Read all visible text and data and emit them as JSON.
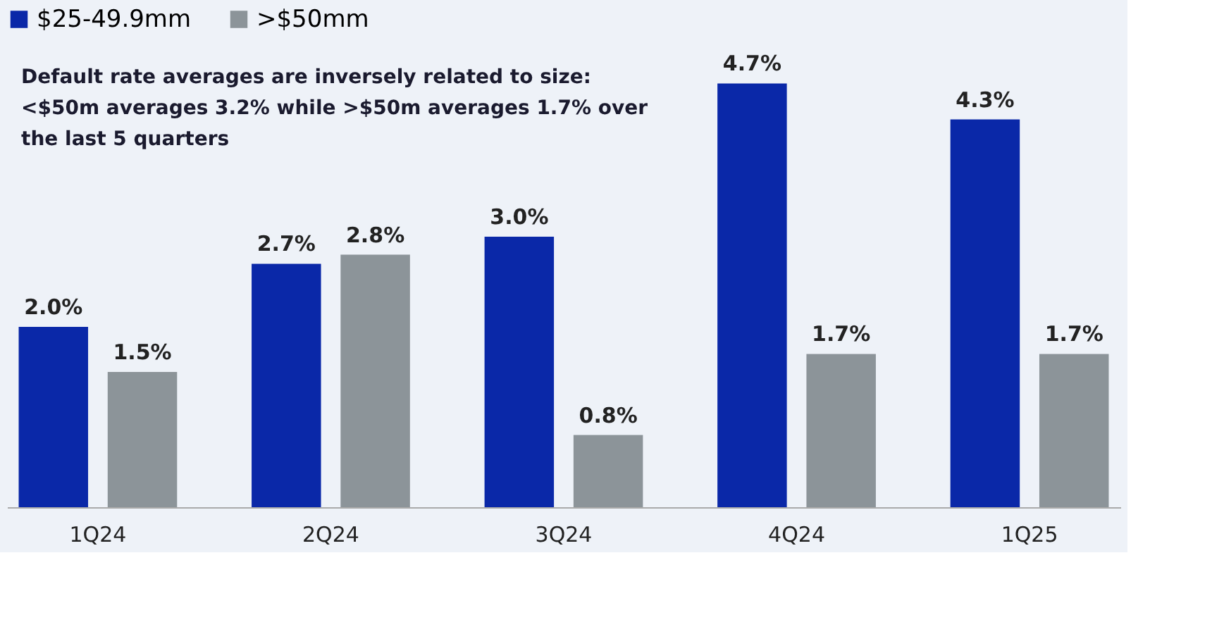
{
  "chart_data": {
    "type": "bar",
    "categories": [
      "1Q24",
      "2Q24",
      "3Q24",
      "4Q24",
      "1Q25"
    ],
    "series": [
      {
        "name": "$25-49.9mm",
        "color": "#0a28a8",
        "values": [
          2.0,
          2.7,
          3.0,
          4.7,
          4.3
        ],
        "value_labels": [
          "2.0%",
          "2.7%",
          "3.0%",
          "4.7%",
          "4.3%"
        ]
      },
      {
        "name": ">$50mm",
        "color": "#8c9499",
        "values": [
          1.5,
          2.8,
          0.8,
          1.7,
          1.7
        ],
        "value_labels": [
          "1.5%",
          "2.8%",
          "0.8%",
          "1.7%",
          "1.7%"
        ]
      }
    ],
    "legend": "top",
    "annotations": [
      "Default rate averages are inversely related to size: <$50m averages 3.2% while >$50m averages 1.7% over the last 5 quarters"
    ]
  }
}
